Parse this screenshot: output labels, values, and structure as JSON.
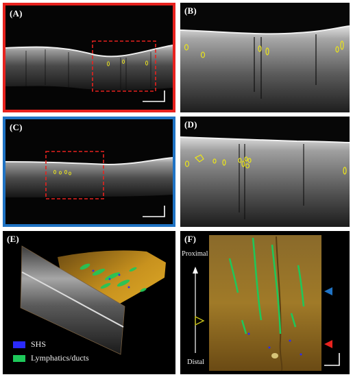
{
  "panels": {
    "a": {
      "label": "(A)"
    },
    "b": {
      "label": "(B)"
    },
    "c": {
      "label": "(C)"
    },
    "d": {
      "label": "(D)"
    },
    "e": {
      "label": "(E)"
    },
    "f": {
      "label": "(F)"
    }
  },
  "legend": {
    "items": [
      {
        "label": "SHS",
        "color": "#2a2aff"
      },
      {
        "label": "Lymphatics/ducts",
        "color": "#1ec85a"
      }
    ]
  },
  "axis": {
    "proximal": "Proximal",
    "distal": "Distal"
  },
  "colors": {
    "panel_a_border": "#e8221e",
    "panel_c_border": "#1f73c4",
    "roi_box": "#e8221e",
    "contour": "#e6e020",
    "arrow_blue": "#1f73c4",
    "arrow_red": "#e8221e",
    "arrow_hollow": "#c9c21a",
    "volume": "#c8921e"
  }
}
